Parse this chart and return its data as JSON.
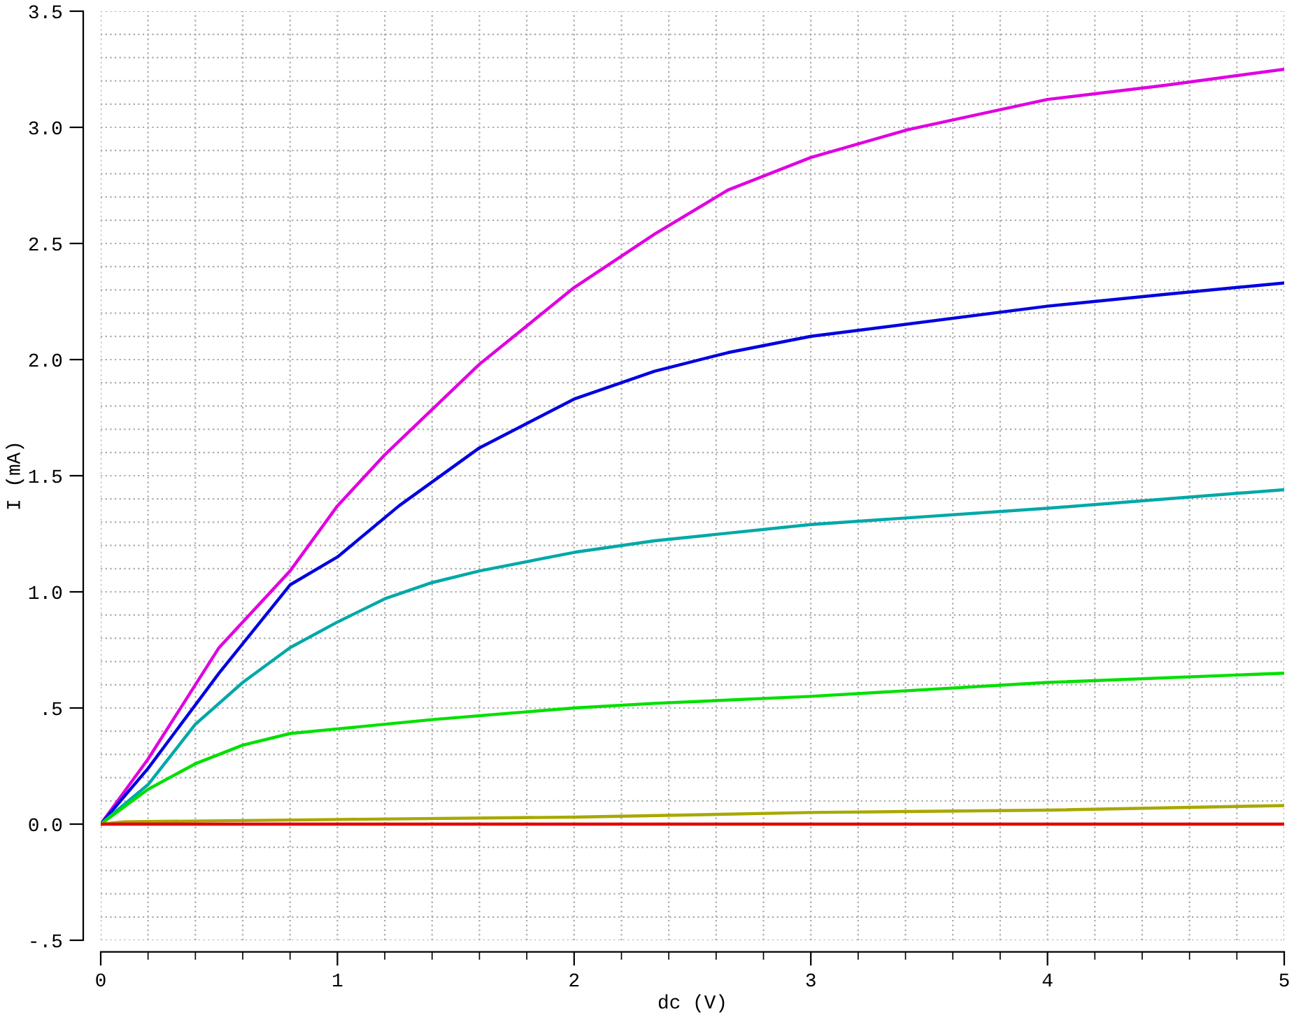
{
  "chart_data": {
    "type": "line",
    "xlabel": "dc (V)",
    "ylabel": "I (mA)",
    "xlim": [
      0,
      5
    ],
    "ylim": [
      -0.5,
      3.5
    ],
    "xticks": [
      0,
      1,
      2,
      3,
      4,
      5
    ],
    "yticks": [
      {
        "value": -0.5,
        "label": "-.5"
      },
      {
        "value": 0,
        "label": "0.0"
      },
      {
        "value": 0.5,
        "label": ".5"
      },
      {
        "value": 1.0,
        "label": "1.0"
      },
      {
        "value": 1.5,
        "label": "1.5"
      },
      {
        "value": 2.0,
        "label": "2.0"
      },
      {
        "value": 2.5,
        "label": "2.5"
      },
      {
        "value": 3.0,
        "label": "3.0"
      },
      {
        "value": 3.5,
        "label": "3.5"
      }
    ],
    "grid": true,
    "marker": "none",
    "line_style": "solid",
    "series": [
      {
        "color": "#e000e0",
        "x": [
          0,
          0.2,
          0.5,
          0.8,
          1.0,
          1.2,
          1.6,
          2.0,
          2.34,
          2.65,
          3.0,
          3.41,
          4.0,
          4.49,
          5.0
        ],
        "values": [
          0,
          0.28,
          0.76,
          1.09,
          1.37,
          1.59,
          1.98,
          2.31,
          2.54,
          2.73,
          2.87,
          2.99,
          3.12,
          3.18,
          3.25
        ]
      },
      {
        "color": "#0000e0",
        "x": [
          0,
          0.2,
          0.5,
          0.8,
          1.0,
          1.26,
          1.6,
          2.0,
          2.34,
          2.65,
          3.0,
          4.0,
          4.49,
          5.0
        ],
        "values": [
          0,
          0.24,
          0.65,
          1.03,
          1.15,
          1.37,
          1.62,
          1.83,
          1.95,
          2.03,
          2.1,
          2.23,
          2.28,
          2.33
        ]
      },
      {
        "color": "#00a8a8",
        "x": [
          0,
          0.2,
          0.4,
          0.6,
          0.8,
          1.0,
          1.2,
          1.4,
          1.6,
          2.0,
          2.34,
          3.0,
          4.0,
          5.0
        ],
        "values": [
          0,
          0.17,
          0.43,
          0.61,
          0.76,
          0.87,
          0.97,
          1.04,
          1.09,
          1.17,
          1.22,
          1.29,
          1.36,
          1.44
        ]
      },
      {
        "color": "#00e000",
        "x": [
          0,
          0.2,
          0.4,
          0.6,
          0.8,
          1.0,
          1.4,
          2.0,
          2.34,
          3.0,
          4.0,
          5.0
        ],
        "values": [
          0,
          0.15,
          0.26,
          0.34,
          0.39,
          0.41,
          0.45,
          0.5,
          0.52,
          0.55,
          0.61,
          0.65
        ]
      },
      {
        "color": "#a8a800",
        "x": [
          0,
          0.1,
          1.0,
          2.0,
          3.0,
          4.0,
          5.0
        ],
        "values": [
          0,
          0.01,
          0.02,
          0.03,
          0.05,
          0.06,
          0.08
        ]
      },
      {
        "color": "#e00000",
        "x": [
          0,
          5.0
        ],
        "values": [
          0,
          0
        ]
      }
    ]
  }
}
